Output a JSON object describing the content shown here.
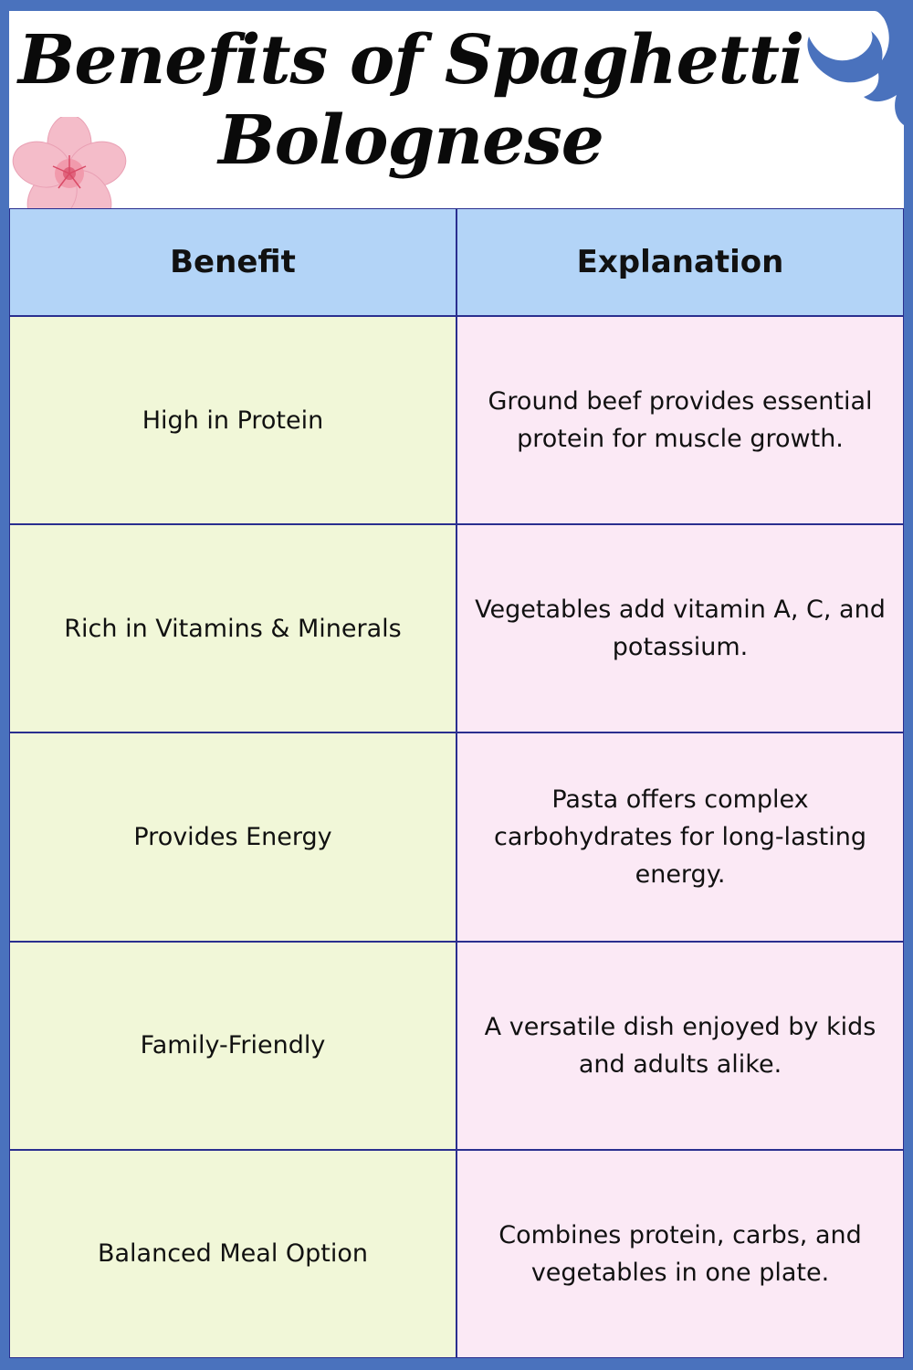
{
  "title_line1": "Benefits of Spaghetti",
  "title_line2": "Bolognese",
  "table": {
    "headers": [
      "Benefit",
      "Explanation"
    ],
    "rows": [
      {
        "benefit": "High in Protein",
        "explanation": "Ground beef provides essential protein for muscle growth."
      },
      {
        "benefit": "Rich in Vitamins & Minerals",
        "explanation": "Vegetables add vitamin A, C, and potassium."
      },
      {
        "benefit": "Provides Energy",
        "explanation": "Pasta offers complex carbohydrates for long-lasting energy."
      },
      {
        "benefit": "Family-Friendly",
        "explanation": "A versatile dish enjoyed by kids and adults alike."
      },
      {
        "benefit": "Balanced Meal Option",
        "explanation": "Combines protein, carbs, and vegetables in one plate."
      }
    ]
  },
  "decorations": {
    "flower": "pink-flower-icon",
    "corner": "blue-wave-swirl"
  },
  "colors": {
    "frame": "#4a72bd",
    "header_fill": "#b3d4f7",
    "benefit_fill": "#f1f7d8",
    "explanation_fill": "#fbe9f5",
    "grid_line": "#2a2f8f"
  }
}
